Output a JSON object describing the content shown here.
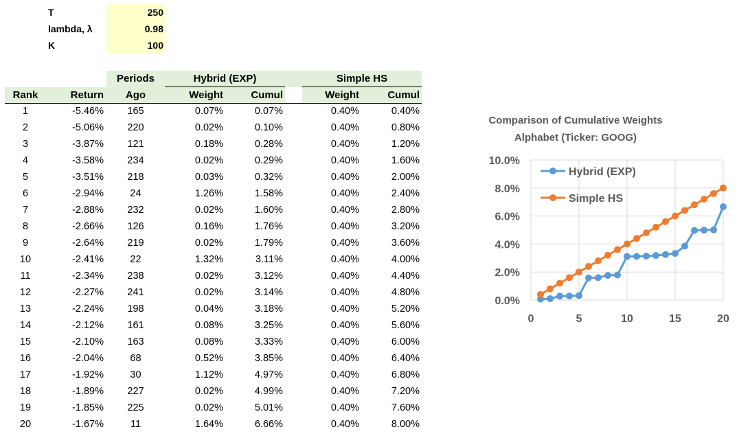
{
  "params": {
    "T": {
      "label": "T",
      "value": "250"
    },
    "lambda": {
      "label": "lambda, λ",
      "value": "0.98"
    },
    "K": {
      "label": "K",
      "value": "100"
    }
  },
  "headers": {
    "rank": "Rank",
    "return": "Return",
    "periods": "Periods",
    "ago": "Ago",
    "hybrid": "Hybrid (EXP)",
    "simple": "Simple HS",
    "weight": "Weight",
    "cumul": "Cumul"
  },
  "rows": [
    {
      "rank": "1",
      "ret": "-5.46%",
      "ago": "165",
      "hw": "0.07%",
      "hc": "0.07%",
      "sw": "0.40%",
      "sc": "0.40%"
    },
    {
      "rank": "2",
      "ret": "-5.06%",
      "ago": "220",
      "hw": "0.02%",
      "hc": "0.10%",
      "sw": "0.40%",
      "sc": "0.80%"
    },
    {
      "rank": "3",
      "ret": "-3.87%",
      "ago": "121",
      "hw": "0.18%",
      "hc": "0.28%",
      "sw": "0.40%",
      "sc": "1.20%"
    },
    {
      "rank": "4",
      "ret": "-3.58%",
      "ago": "234",
      "hw": "0.02%",
      "hc": "0.29%",
      "sw": "0.40%",
      "sc": "1.60%"
    },
    {
      "rank": "5",
      "ret": "-3.51%",
      "ago": "218",
      "hw": "0.03%",
      "hc": "0.32%",
      "sw": "0.40%",
      "sc": "2.00%"
    },
    {
      "rank": "6",
      "ret": "-2.94%",
      "ago": "24",
      "hw": "1.26%",
      "hc": "1.58%",
      "sw": "0.40%",
      "sc": "2.40%"
    },
    {
      "rank": "7",
      "ret": "-2.88%",
      "ago": "232",
      "hw": "0.02%",
      "hc": "1.60%",
      "sw": "0.40%",
      "sc": "2.80%"
    },
    {
      "rank": "8",
      "ret": "-2.66%",
      "ago": "126",
      "hw": "0.16%",
      "hc": "1.76%",
      "sw": "0.40%",
      "sc": "3.20%"
    },
    {
      "rank": "9",
      "ret": "-2.64%",
      "ago": "219",
      "hw": "0.02%",
      "hc": "1.79%",
      "sw": "0.40%",
      "sc": "3.60%"
    },
    {
      "rank": "10",
      "ret": "-2.41%",
      "ago": "22",
      "hw": "1.32%",
      "hc": "3.11%",
      "sw": "0.40%",
      "sc": "4.00%"
    },
    {
      "rank": "11",
      "ret": "-2.34%",
      "ago": "238",
      "hw": "0.02%",
      "hc": "3.12%",
      "sw": "0.40%",
      "sc": "4.40%"
    },
    {
      "rank": "12",
      "ret": "-2.27%",
      "ago": "241",
      "hw": "0.02%",
      "hc": "3.14%",
      "sw": "0.40%",
      "sc": "4.80%"
    },
    {
      "rank": "13",
      "ret": "-2.24%",
      "ago": "198",
      "hw": "0.04%",
      "hc": "3.18%",
      "sw": "0.40%",
      "sc": "5.20%"
    },
    {
      "rank": "14",
      "ret": "-2.12%",
      "ago": "161",
      "hw": "0.08%",
      "hc": "3.25%",
      "sw": "0.40%",
      "sc": "5.60%"
    },
    {
      "rank": "15",
      "ret": "-2.10%",
      "ago": "163",
      "hw": "0.08%",
      "hc": "3.33%",
      "sw": "0.40%",
      "sc": "6.00%"
    },
    {
      "rank": "16",
      "ret": "-2.04%",
      "ago": "68",
      "hw": "0.52%",
      "hc": "3.85%",
      "sw": "0.40%",
      "sc": "6.40%"
    },
    {
      "rank": "17",
      "ret": "-1.92%",
      "ago": "30",
      "hw": "1.12%",
      "hc": "4.97%",
      "sw": "0.40%",
      "sc": "6.80%"
    },
    {
      "rank": "18",
      "ret": "-1.89%",
      "ago": "227",
      "hw": "0.02%",
      "hc": "4.99%",
      "sw": "0.40%",
      "sc": "7.20%"
    },
    {
      "rank": "19",
      "ret": "-1.85%",
      "ago": "225",
      "hw": "0.02%",
      "hc": "5.01%",
      "sw": "0.40%",
      "sc": "7.60%"
    },
    {
      "rank": "20",
      "ret": "-1.67%",
      "ago": "11",
      "hw": "1.64%",
      "hc": "6.66%",
      "sw": "0.40%",
      "sc": "8.00%"
    }
  ],
  "chart_data": {
    "type": "line",
    "title": "Comparison of Cumulative Weights",
    "subtitle": "Alphabet (Ticker: GOOG)",
    "xlabel": "",
    "ylabel": "",
    "xlim": [
      0,
      20
    ],
    "ylim": [
      0,
      0.1
    ],
    "x_ticks": [
      "0",
      "5",
      "10",
      "15",
      "20"
    ],
    "y_ticks": [
      "0.0%",
      "2.0%",
      "4.0%",
      "6.0%",
      "8.0%",
      "10.0%"
    ],
    "grid": true,
    "legend": "top-left",
    "x": [
      1,
      2,
      3,
      4,
      5,
      6,
      7,
      8,
      9,
      10,
      11,
      12,
      13,
      14,
      15,
      16,
      17,
      18,
      19,
      20
    ],
    "series": [
      {
        "name": "Hybrid (EXP)",
        "color": "#5b9bd5",
        "values": [
          0.0007,
          0.001,
          0.0028,
          0.0029,
          0.0032,
          0.0158,
          0.016,
          0.0176,
          0.0179,
          0.0311,
          0.0312,
          0.0314,
          0.0318,
          0.0325,
          0.0333,
          0.0385,
          0.0497,
          0.0499,
          0.0501,
          0.0666
        ]
      },
      {
        "name": "Simple HS",
        "color": "#ed7d31",
        "values": [
          0.004,
          0.008,
          0.012,
          0.016,
          0.02,
          0.024,
          0.028,
          0.032,
          0.036,
          0.04,
          0.044,
          0.048,
          0.052,
          0.056,
          0.06,
          0.064,
          0.068,
          0.072,
          0.076,
          0.08
        ]
      }
    ]
  }
}
